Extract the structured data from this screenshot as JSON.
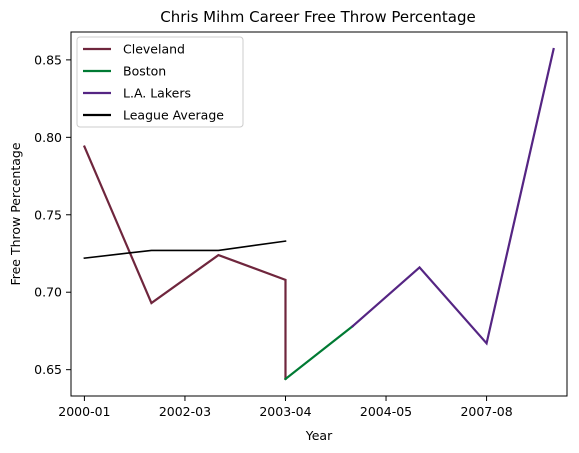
{
  "chart_data": {
    "type": "line",
    "title": "Chris Mihm Career Free Throw Percentage",
    "xlabel": "Year",
    "ylabel": "Free Throw Percentage",
    "x_tick_labels": [
      "2000-01",
      "2002-03",
      "2003-04",
      "2004-05",
      "2007-08"
    ],
    "x_tick_positions": [
      0,
      3,
      6,
      9,
      12
    ],
    "xlim": [
      -0.4,
      14.4
    ],
    "ylim": [
      0.633,
      0.868
    ],
    "y_ticks": [
      0.65,
      0.7,
      0.75,
      0.8,
      0.85
    ],
    "y_tick_labels": [
      "0.65",
      "0.70",
      "0.75",
      "0.80",
      "0.85"
    ],
    "grid": false,
    "legend_position": "top-left",
    "series": [
      {
        "name": "Cleveland",
        "color": "#6f263d",
        "points": [
          {
            "x": 0,
            "y": 0.794
          },
          {
            "x": 2,
            "y": 0.693
          },
          {
            "x": 4,
            "y": 0.724
          },
          {
            "x": 6,
            "y": 0.708
          },
          {
            "x": 6,
            "y": 0.644
          }
        ]
      },
      {
        "name": "Boston",
        "color": "#007a33",
        "points": [
          {
            "x": 6,
            "y": 0.644
          },
          {
            "x": 8,
            "y": 0.678
          }
        ]
      },
      {
        "name": "L.A. Lakers",
        "color": "#552583",
        "points": [
          {
            "x": 8,
            "y": 0.678
          },
          {
            "x": 10,
            "y": 0.716
          },
          {
            "x": 12,
            "y": 0.667
          },
          {
            "x": 14,
            "y": 0.857
          }
        ]
      },
      {
        "name": "League Average",
        "color": "#000000",
        "points": [
          {
            "x": 0,
            "y": 0.722
          },
          {
            "x": 2,
            "y": 0.727
          },
          {
            "x": 4,
            "y": 0.727
          },
          {
            "x": 6,
            "y": 0.733
          }
        ]
      }
    ]
  }
}
